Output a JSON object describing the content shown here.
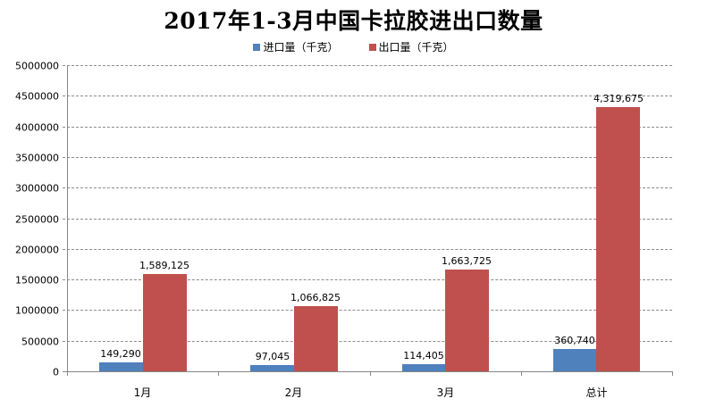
{
  "chart_data": {
    "type": "bar",
    "title": "2017年1-3月中国卡拉胶进出口数量",
    "categories": [
      "1月",
      "2月",
      "3月",
      "总计"
    ],
    "series": [
      {
        "name": "进口量（千克）",
        "color": "#4F81BD",
        "values": [
          149290,
          97045,
          114405,
          360740
        ],
        "labels": [
          "149,290",
          "97,045",
          "114,405",
          "360,740"
        ]
      },
      {
        "name": "出口量（千克）",
        "color": "#C0504D",
        "values": [
          1589125,
          1066825,
          1663725,
          4319675
        ],
        "labels": [
          "1,589,125",
          "1,066,825",
          "1,663,725",
          "4,319,675"
        ]
      }
    ],
    "xlabel": "",
    "ylabel": "",
    "ylim": [
      0,
      5000000
    ],
    "yticks": [
      "0",
      "500000",
      "1000000",
      "1500000",
      "2000000",
      "2500000",
      "3000000",
      "3500000",
      "4000000",
      "4500000",
      "5000000"
    ],
    "grid": true,
    "legend_position": "top"
  }
}
